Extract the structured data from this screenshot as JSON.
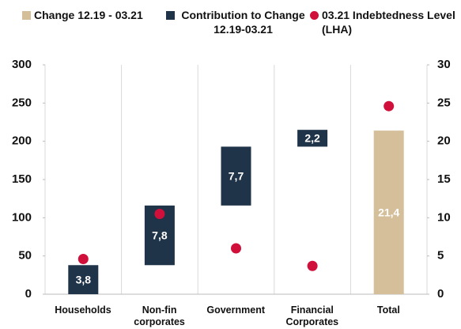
{
  "chart_data": {
    "type": "waterfall",
    "categories": [
      "Households",
      "Non-fin corporates",
      "Government",
      "Financial Corporates",
      "Total"
    ],
    "series": [
      {
        "name": "Change 12.19 - 03.21",
        "color": "#d5bf9a",
        "axis": "y2",
        "values": [
          null,
          null,
          null,
          null,
          21.4
        ],
        "value_labels": [
          null,
          null,
          null,
          null,
          "21,4"
        ]
      },
      {
        "name": "Contribution to Change 12.19-03.21",
        "color": "#1f3349",
        "axis": "y2",
        "values": [
          3.8,
          7.8,
          7.7,
          2.2,
          null
        ],
        "value_labels": [
          "3,8",
          "7,8",
          "7,7",
          "2,2",
          null
        ]
      },
      {
        "name": "03.21 Indebtedness Level (LHA)",
        "color": "#d0103a",
        "values": [
          46,
          105,
          60,
          37,
          246
        ]
      }
    ],
    "ylim": [
      0,
      300
    ],
    "yticks": [
      0,
      50,
      100,
      150,
      200,
      250,
      300
    ],
    "y2lim": [
      0,
      30
    ],
    "y2ticks": [
      0,
      5,
      10,
      15,
      20,
      25,
      30
    ],
    "grid": true
  }
}
